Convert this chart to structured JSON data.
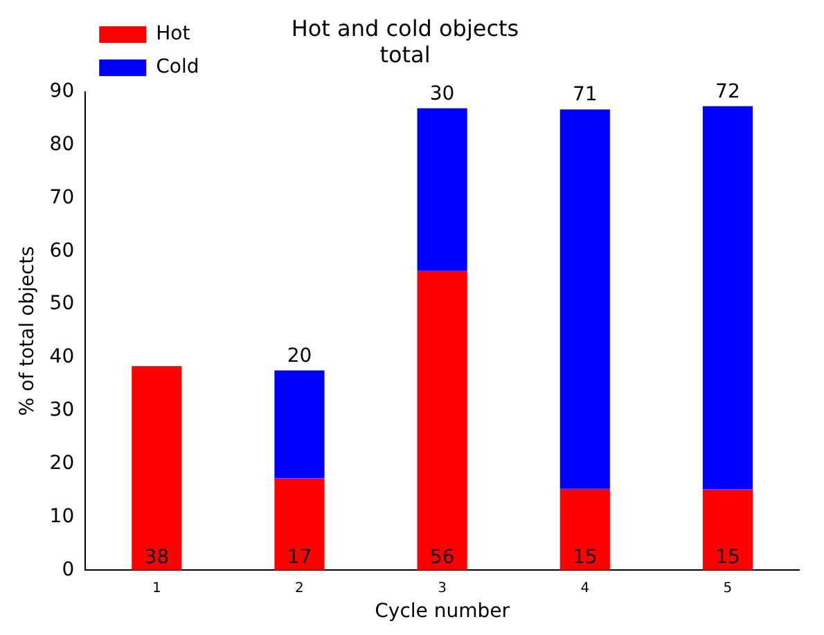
{
  "chart_data": {
    "type": "bar",
    "title": "Hot and cold objects",
    "subtitle": "total",
    "xlabel": "Cycle number",
    "ylabel": "% of total objects",
    "categories": [
      "1",
      "2",
      "3",
      "4",
      "5"
    ],
    "stacked": true,
    "series": [
      {
        "name": "Hot",
        "color": "#ff0000",
        "values": [
          38.4,
          17.3,
          56.4,
          15.3,
          15.2
        ],
        "value_labels": [
          "38",
          "17",
          "56",
          "15",
          "15"
        ]
      },
      {
        "name": "Cold",
        "color": "#0000ff",
        "values": [
          null,
          20.3,
          30.5,
          71.4,
          72.1
        ],
        "value_labels": [
          null,
          "20",
          "30",
          "71",
          "72"
        ]
      }
    ],
    "ylim": [
      0,
      90
    ],
    "yticks": [
      0,
      10,
      20,
      30,
      40,
      50,
      60,
      70,
      80,
      90
    ],
    "grid": false,
    "legend": "top left"
  }
}
